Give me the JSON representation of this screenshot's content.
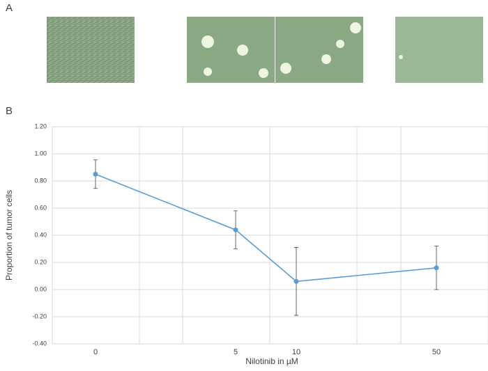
{
  "panel_a": {
    "label": "A"
  },
  "chart_data": {
    "type": "line",
    "panel_label": "B",
    "x_label": "Nilotinib in µM",
    "y_label": "Proportion of tumor cells",
    "categories": [
      "0",
      "5",
      "10",
      "50"
    ],
    "series": [
      {
        "name": "Proportion of tumor cells",
        "color": "#5b9bd5",
        "values": [
          0.85,
          0.44,
          0.06,
          0.16
        ],
        "errors": [
          0.105,
          0.14,
          0.25,
          0.16
        ]
      }
    ],
    "ylim": [
      -0.4,
      1.2
    ],
    "yticks": [
      {
        "value": -0.4,
        "label": "-0.40"
      },
      {
        "value": -0.2,
        "label": "-0.20"
      },
      {
        "value": 0,
        "label": "0.00"
      },
      {
        "value": 0.2,
        "label": "0.20"
      },
      {
        "value": 0.4,
        "label": "0.40"
      },
      {
        "value": 0.6,
        "label": "0.60"
      },
      {
        "value": 0.8,
        "label": "0.80"
      },
      {
        "value": 1.0,
        "label": "1.00"
      },
      {
        "value": 1.2,
        "label": "1.20"
      }
    ],
    "grid": true
  }
}
